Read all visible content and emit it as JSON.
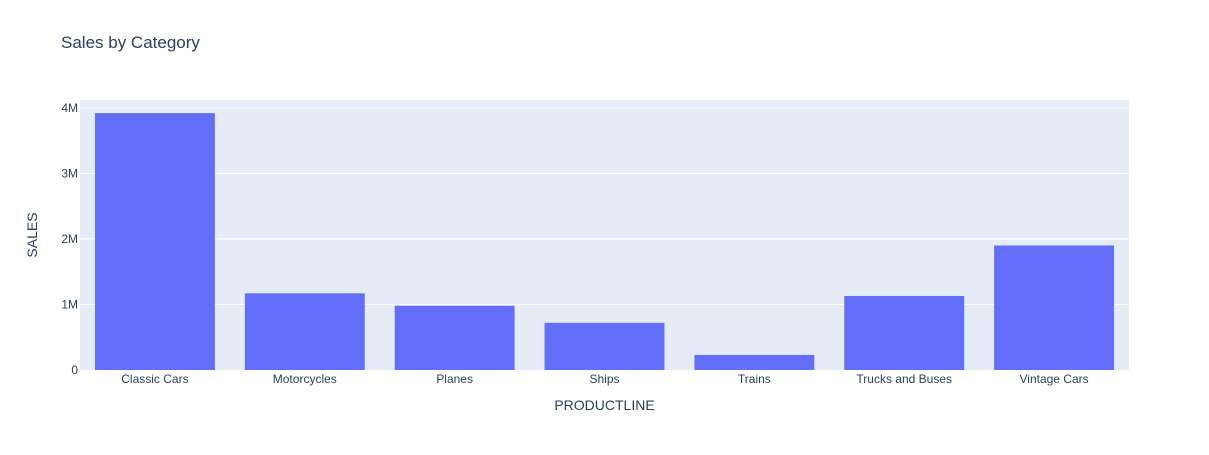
{
  "chart_data": {
    "type": "bar",
    "title": "Sales by Category",
    "xlabel": "PRODUCTLINE",
    "ylabel": "SALES",
    "categories": [
      "Classic Cars",
      "Motorcycles",
      "Planes",
      "Ships",
      "Trains",
      "Trucks and Buses",
      "Vintage Cars"
    ],
    "values": [
      3920000,
      1170000,
      980000,
      720000,
      230000,
      1130000,
      1900000
    ],
    "ylim": [
      0,
      4120000
    ],
    "yticks": [
      0,
      1000000,
      2000000,
      3000000,
      4000000
    ],
    "ytick_labels": [
      "0",
      "1M",
      "2M",
      "3M",
      "4M"
    ],
    "grid": true,
    "bar_color": "#636efa",
    "plot_bg": "#e5ecf6",
    "grid_color": "#ffffff"
  }
}
